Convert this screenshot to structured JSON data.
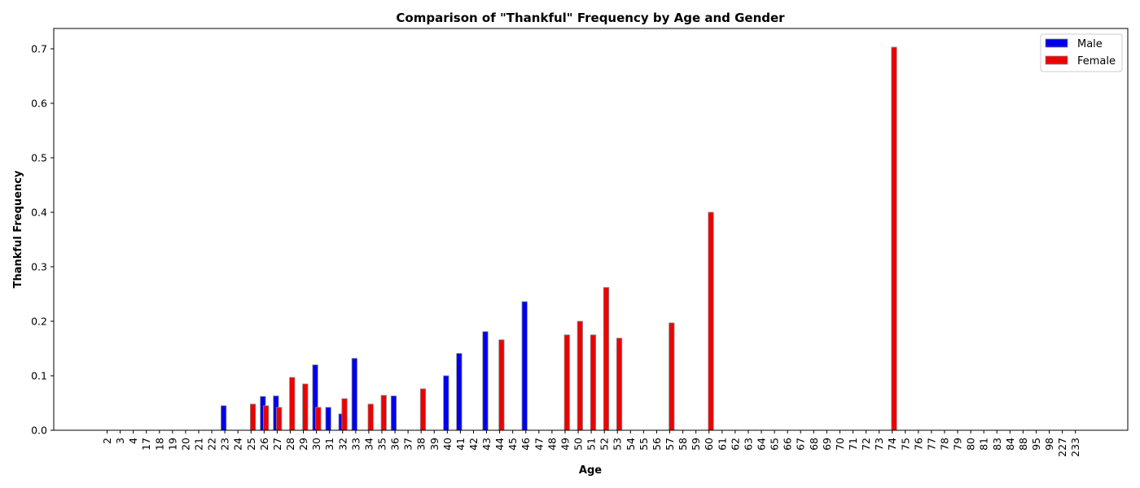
{
  "chart_data": {
    "type": "bar",
    "title": "Comparison of \"Thankful\" Frequency by Age and Gender",
    "xlabel": "Age",
    "ylabel": "Thankful Frequency",
    "ylim": [
      0,
      0.74
    ],
    "yticks": [
      "0.0",
      "0.1",
      "0.2",
      "0.3",
      "0.4",
      "0.5",
      "0.6",
      "0.7"
    ],
    "legend_position": "top-right",
    "grid": false,
    "categories": [
      "2",
      "3",
      "4",
      "17",
      "18",
      "19",
      "20",
      "21",
      "22",
      "23",
      "24",
      "25",
      "26",
      "27",
      "28",
      "29",
      "30",
      "31",
      "32",
      "33",
      "34",
      "35",
      "36",
      "37",
      "38",
      "39",
      "40",
      "41",
      "42",
      "43",
      "44",
      "45",
      "46",
      "47",
      "48",
      "49",
      "50",
      "51",
      "52",
      "53",
      "54",
      "55",
      "56",
      "57",
      "58",
      "59",
      "60",
      "61",
      "62",
      "63",
      "64",
      "65",
      "66",
      "67",
      "68",
      "69",
      "70",
      "71",
      "72",
      "73",
      "74",
      "75",
      "76",
      "77",
      "78",
      "79",
      "80",
      "81",
      "83",
      "84",
      "88",
      "95",
      "98",
      "227",
      "233"
    ],
    "series": [
      {
        "name": "Male",
        "color": "#0000ee",
        "values": [
          0,
          0,
          0,
          0,
          0,
          0,
          0,
          0,
          0,
          0.045,
          0,
          0,
          0.062,
          0.063,
          0,
          0,
          0.12,
          0.042,
          0.03,
          0.132,
          0,
          0,
          0.063,
          0,
          0,
          0,
          0.1,
          0.141,
          0,
          0.181,
          0,
          0,
          0.236,
          0,
          0,
          0,
          0,
          0,
          0,
          0,
          0,
          0,
          0,
          0,
          0,
          0,
          0,
          0,
          0,
          0,
          0,
          0,
          0,
          0,
          0,
          0,
          0,
          0,
          0,
          0,
          0,
          0,
          0,
          0,
          0,
          0,
          0,
          0,
          0,
          0,
          0,
          0,
          0,
          0,
          0
        ]
      },
      {
        "name": "Female",
        "color": "#ee0000",
        "values": [
          0,
          0,
          0,
          0,
          0,
          0,
          0,
          0,
          0,
          0,
          0,
          0.048,
          0.045,
          0.042,
          0.097,
          0.085,
          0.042,
          0,
          0.058,
          0,
          0.048,
          0.064,
          0,
          0,
          0.076,
          0,
          0,
          0,
          0,
          0,
          0.166,
          0,
          0,
          0,
          0,
          0.175,
          0.2,
          0.175,
          0.262,
          0.169,
          0,
          0,
          0,
          0.197,
          0,
          0,
          0.4,
          0,
          0,
          0,
          0,
          0,
          0,
          0,
          0,
          0,
          0,
          0,
          0,
          0,
          0.703,
          0,
          0,
          0,
          0,
          0,
          0,
          0,
          0,
          0,
          0,
          0,
          0,
          0,
          0
        ]
      }
    ]
  }
}
